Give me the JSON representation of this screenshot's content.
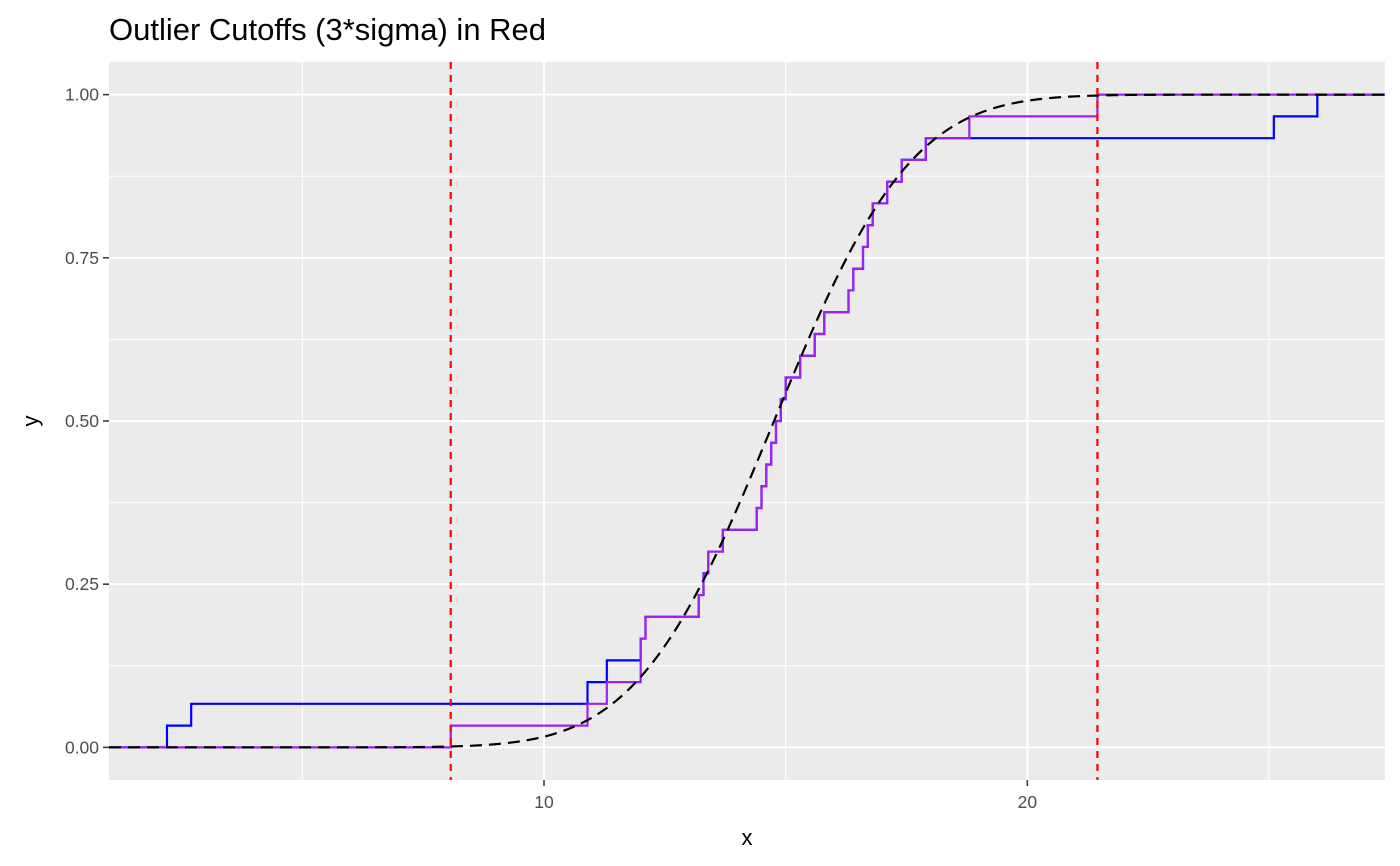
{
  "chart_data": {
    "type": "line",
    "title": "Outlier Cutoffs (3*sigma) in Red",
    "xlabel": "x",
    "ylabel": "y",
    "xlim": [
      1.0,
      27.4
    ],
    "ylim": [
      -0.05,
      1.05
    ],
    "x_ticks": [
      10,
      20
    ],
    "x_tick_labels": [
      "10",
      "20"
    ],
    "x_minor_ticks": [
      5,
      15,
      25
    ],
    "y_ticks": [
      0,
      0.25,
      0.5,
      0.75,
      1
    ],
    "y_tick_labels": [
      "0.00",
      "0.25",
      "0.50",
      "0.75",
      "1.00"
    ],
    "y_minor_ticks": [
      0.125,
      0.375,
      0.625,
      0.875
    ],
    "grid": true,
    "legend": "none",
    "cutoffs": {
      "color": "#ff0000",
      "values": [
        8.07,
        21.45
      ]
    },
    "normal_cdf": {
      "color": "#000000",
      "mean": 14.76,
      "sd": 2.23
    },
    "series": [
      {
        "color": "#0000ff",
        "steps": [
          [
            1.0,
            0
          ],
          [
            2.2,
            0.0333
          ],
          [
            2.7,
            0.0667
          ],
          [
            10.9,
            0.1
          ],
          [
            11.3,
            0.1333
          ],
          [
            12.0,
            0.1667
          ],
          [
            12.1,
            0.2
          ],
          [
            13.2,
            0.2333
          ],
          [
            13.3,
            0.2667
          ],
          [
            13.4,
            0.3
          ],
          [
            13.7,
            0.3333
          ],
          [
            14.4,
            0.3667
          ],
          [
            14.5,
            0.4
          ],
          [
            14.6,
            0.4333
          ],
          [
            14.7,
            0.4667
          ],
          [
            14.8,
            0.5
          ],
          [
            14.9,
            0.5333
          ],
          [
            15.0,
            0.5667
          ],
          [
            15.3,
            0.6
          ],
          [
            15.6,
            0.6333
          ],
          [
            15.8,
            0.6667
          ],
          [
            16.3,
            0.7
          ],
          [
            16.4,
            0.7333
          ],
          [
            16.6,
            0.7667
          ],
          [
            16.7,
            0.8
          ],
          [
            16.8,
            0.8333
          ],
          [
            17.1,
            0.8667
          ],
          [
            17.4,
            0.9
          ],
          [
            17.9,
            0.9333
          ],
          [
            25.1,
            0.9667
          ],
          [
            26.0,
            1.0
          ],
          [
            27.4,
            1.0
          ]
        ]
      },
      {
        "color": "#a020f0",
        "steps": [
          [
            1.0,
            0
          ],
          [
            8.07,
            0.0333
          ],
          [
            10.9,
            0.0667
          ],
          [
            11.3,
            0.1
          ],
          [
            12.0,
            0.1333
          ],
          [
            12.0,
            0.1667
          ],
          [
            12.1,
            0.2
          ],
          [
            13.2,
            0.2333
          ],
          [
            13.3,
            0.2667
          ],
          [
            13.4,
            0.3
          ],
          [
            13.7,
            0.3333
          ],
          [
            14.4,
            0.3667
          ],
          [
            14.5,
            0.4
          ],
          [
            14.6,
            0.4333
          ],
          [
            14.7,
            0.4667
          ],
          [
            14.8,
            0.5
          ],
          [
            14.9,
            0.5333
          ],
          [
            15.0,
            0.5667
          ],
          [
            15.3,
            0.6
          ],
          [
            15.6,
            0.6333
          ],
          [
            15.8,
            0.6667
          ],
          [
            16.3,
            0.7
          ],
          [
            16.4,
            0.7333
          ],
          [
            16.6,
            0.7667
          ],
          [
            16.7,
            0.8
          ],
          [
            16.8,
            0.8333
          ],
          [
            17.1,
            0.8667
          ],
          [
            17.4,
            0.9
          ],
          [
            17.9,
            0.9333
          ],
          [
            18.8,
            0.9667
          ],
          [
            21.45,
            1.0
          ],
          [
            27.4,
            1.0
          ]
        ]
      }
    ]
  }
}
